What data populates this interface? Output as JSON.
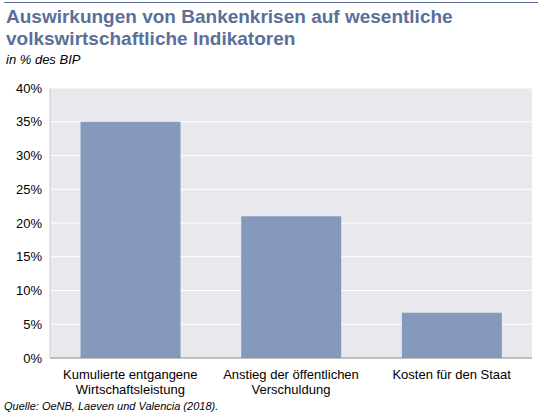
{
  "chart_data": {
    "type": "bar",
    "title": "Auswirkungen von Bankenkrisen auf wesentliche volkswirtschaftliche Indikatoren",
    "subtitle": "in % des BIP",
    "source": "Quelle: OeNB, Laeven und Valencia (2018).",
    "categories": [
      "Kumulierte entgangene Wirtschaftsleistung",
      "Anstieg der öffentlichen Verschuldung",
      "Kosten für den Staat"
    ],
    "values": [
      35,
      21,
      6.7
    ],
    "color": "#8599bd",
    "ylim": [
      0,
      40
    ],
    "yticks": [
      {
        "value": 0,
        "label": "0%"
      },
      {
        "value": 5,
        "label": "5%"
      },
      {
        "value": 10,
        "label": "10%"
      },
      {
        "value": 15,
        "label": "15%"
      },
      {
        "value": 20,
        "label": "20%"
      },
      {
        "value": 25,
        "label": "25%"
      },
      {
        "value": 30,
        "label": "30%"
      },
      {
        "value": 35,
        "label": "35%"
      },
      {
        "value": 40,
        "label": "40%"
      }
    ],
    "grid": true
  }
}
